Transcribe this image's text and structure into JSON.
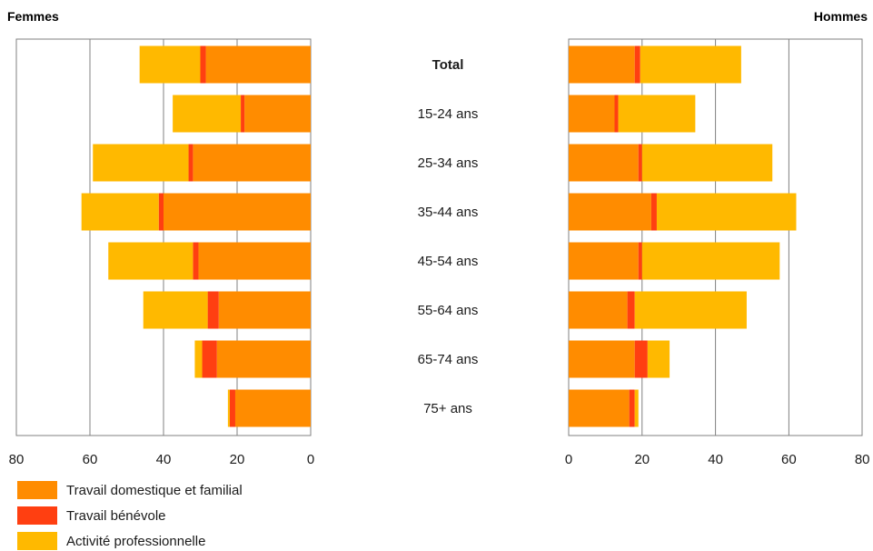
{
  "chart_data": {
    "type": "bar",
    "orientation": "horizontal",
    "stacked": true,
    "categories": [
      "Total",
      "15-24 ans",
      "25-34 ans",
      "35-44 ans",
      "45-54 ans",
      "55-64 ans",
      "65-74 ans",
      "75+ ans"
    ],
    "panels": [
      {
        "title": "Femmes",
        "direction": "leftward",
        "xlim": [
          0,
          80
        ],
        "ticks": [
          "80",
          "60",
          "40",
          "20",
          "0"
        ],
        "tick_values": [
          80,
          60,
          40,
          20,
          0
        ],
        "series": [
          {
            "name": "Travail domestique et familial",
            "values": [
              28.5,
              18,
              32,
              40,
              30.5,
              25,
              25.5,
              20.5
            ]
          },
          {
            "name": "Travail bénévole",
            "values": [
              1.5,
              1,
              1.2,
              1.3,
              1.5,
              3,
              4,
              1.5
            ]
          },
          {
            "name": "Activité professionnelle",
            "values": [
              16.5,
              18.5,
              26,
              21,
              23,
              17.5,
              2,
              0.5
            ]
          }
        ]
      },
      {
        "title": "Hommes",
        "direction": "rightward",
        "xlim": [
          0,
          80
        ],
        "ticks": [
          "0",
          "20",
          "40",
          "60",
          "80"
        ],
        "tick_values": [
          0,
          20,
          40,
          60,
          80
        ],
        "series": [
          {
            "name": "Travail domestique et familial",
            "values": [
              18,
              12.5,
              19,
              22.5,
              19,
              16,
              18,
              16.5
            ]
          },
          {
            "name": "Travail bénévole",
            "values": [
              1.5,
              1,
              1,
              1.5,
              1,
              2,
              3.5,
              1.5
            ]
          },
          {
            "name": "Activité professionnelle",
            "values": [
              27.5,
              21,
              35.5,
              38,
              37.5,
              30.5,
              6,
              1
            ]
          }
        ]
      }
    ],
    "legend": {
      "placement": "bottom-left",
      "entries": [
        "Travail domestique et familial",
        "Travail bénévole",
        "Activité professionnelle"
      ]
    },
    "colors": {
      "Travail domestique et familial": "#FF8C00",
      "Travail bénévole": "#FF3F11",
      "Activité professionnelle": "#FFB900"
    },
    "grid": true
  }
}
